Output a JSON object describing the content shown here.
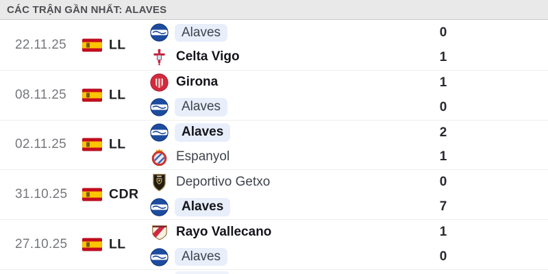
{
  "header": {
    "title": "CÁC TRẬN GẦN NHẤT: ALAVES"
  },
  "colors": {
    "header_bg": "#e9e9e9",
    "header_text": "#4d4e52",
    "highlight_pill": "#e8eefa",
    "flag_red": "#c60b1e",
    "flag_yellow": "#ffc400",
    "winner_text": "#14151a",
    "score_text": "#26282e",
    "alaves_blue": "#1d4c9f"
  },
  "matches": [
    {
      "date": "22.11.25",
      "competition": "LL",
      "home": {
        "team": "Alaves",
        "score": "0",
        "logo": "alaves-logo",
        "winner": false,
        "highlight": true
      },
      "away": {
        "team": "Celta Vigo",
        "score": "1",
        "logo": "celta-vigo-logo",
        "winner": true,
        "highlight": false
      }
    },
    {
      "date": "08.11.25",
      "competition": "LL",
      "home": {
        "team": "Girona",
        "score": "1",
        "logo": "girona-logo",
        "winner": true,
        "highlight": false
      },
      "away": {
        "team": "Alaves",
        "score": "0",
        "logo": "alaves-logo",
        "winner": false,
        "highlight": true
      }
    },
    {
      "date": "02.11.25",
      "competition": "LL",
      "home": {
        "team": "Alaves",
        "score": "2",
        "logo": "alaves-logo",
        "winner": true,
        "highlight": true
      },
      "away": {
        "team": "Espanyol",
        "score": "1",
        "logo": "espanyol-logo",
        "winner": false,
        "highlight": false
      }
    },
    {
      "date": "31.10.25",
      "competition": "CDR",
      "home": {
        "team": "Deportivo Getxo",
        "score": "0",
        "logo": "deportivo-getxo-logo",
        "winner": false,
        "highlight": false
      },
      "away": {
        "team": "Alaves",
        "score": "7",
        "logo": "alaves-logo",
        "winner": true,
        "highlight": true
      }
    },
    {
      "date": "27.10.25",
      "competition": "LL",
      "home": {
        "team": "Rayo Vallecano",
        "score": "1",
        "logo": "rayo-vallecano-logo",
        "winner": true,
        "highlight": false
      },
      "away": {
        "team": "Alaves",
        "score": "0",
        "logo": "alaves-logo",
        "winner": false,
        "highlight": true
      }
    }
  ]
}
